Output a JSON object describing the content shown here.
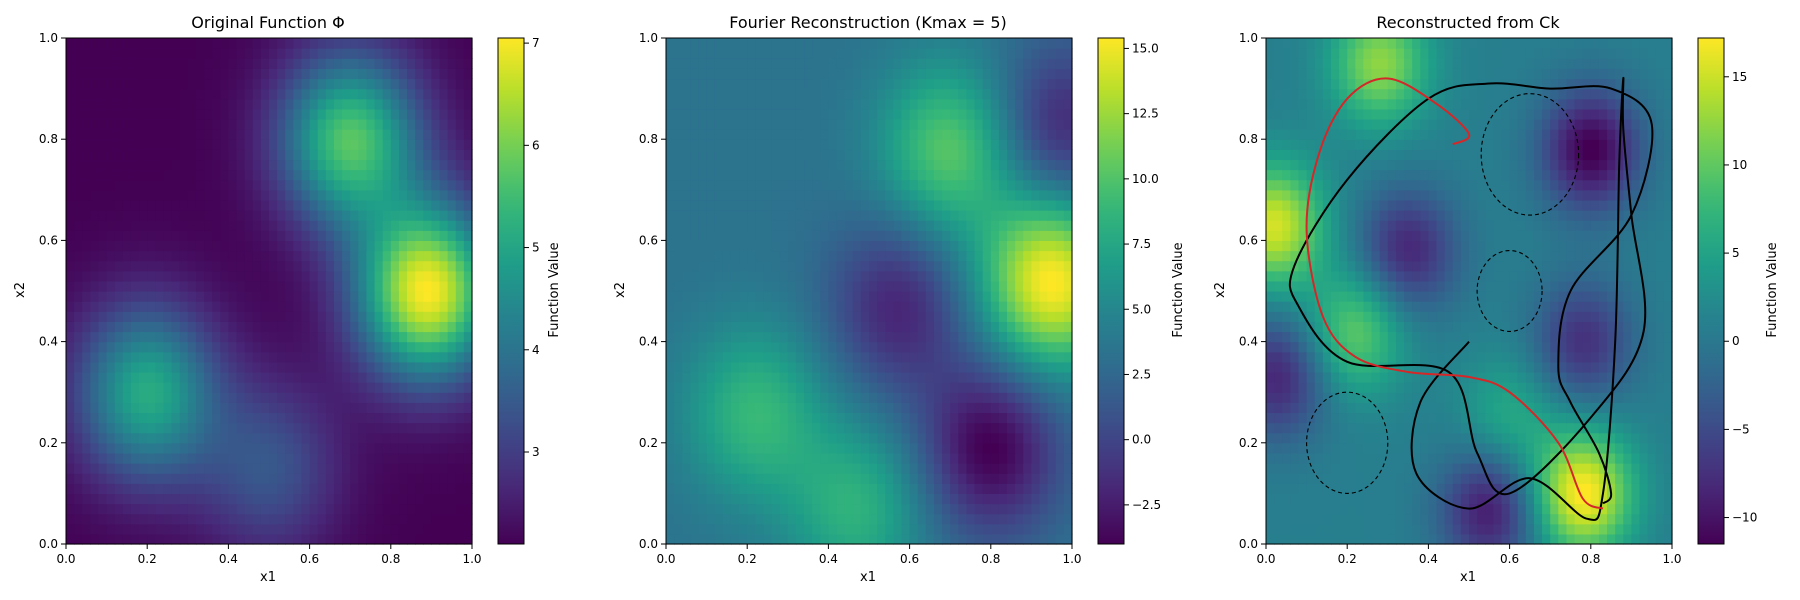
{
  "chart_data": [
    {
      "type": "heatmap",
      "title": "Original Function Φ",
      "xlabel": "x1",
      "ylabel": "x2",
      "xlim": [
        0,
        1
      ],
      "ylim": [
        0,
        1
      ],
      "xticks": [
        "0.0",
        "0.2",
        "0.4",
        "0.6",
        "0.8",
        "1.0"
      ],
      "yticks": [
        "0.0",
        "0.2",
        "0.4",
        "0.6",
        "0.8",
        "1.0"
      ],
      "colormap": "viridis",
      "colorbar": {
        "label": "Function Value",
        "range": [
          2.1,
          7.05
        ],
        "ticks": [
          "3",
          "4",
          "5",
          "6",
          "7"
        ]
      },
      "peaks": [
        {
          "x": 0.2,
          "y": 0.3,
          "value": 5.1
        },
        {
          "x": 0.7,
          "y": 0.8,
          "value": 5.7
        },
        {
          "x": 0.89,
          "y": 0.5,
          "value": 7.0
        },
        {
          "x": 0.5,
          "y": 0.15,
          "value": 3.4
        }
      ]
    },
    {
      "type": "heatmap",
      "title": "Fourier Reconstruction (Kmax = 5)",
      "xlabel": "x1",
      "ylabel": "x2",
      "xlim": [
        0,
        1
      ],
      "ylim": [
        0,
        1
      ],
      "xticks": [
        "0.0",
        "0.2",
        "0.4",
        "0.6",
        "0.8",
        "1.0"
      ],
      "yticks": [
        "0.0",
        "0.2",
        "0.4",
        "0.6",
        "0.8",
        "1.0"
      ],
      "colormap": "viridis",
      "colorbar": {
        "label": "Function Value",
        "range": [
          -4.0,
          15.4
        ],
        "ticks": [
          "−2.5",
          "0.0",
          "2.5",
          "5.0",
          "7.5",
          "10.0",
          "12.5",
          "15.0"
        ]
      },
      "peaks": [
        {
          "x": 0.95,
          "y": 0.52,
          "value": 15.0
        },
        {
          "x": 0.7,
          "y": 0.78,
          "value": 10.0
        },
        {
          "x": 0.22,
          "y": 0.26,
          "value": 8.5
        },
        {
          "x": 0.47,
          "y": 0.07,
          "value": 8.0
        },
        {
          "x": 0.8,
          "y": 0.19,
          "value": -4.0
        },
        {
          "x": 0.57,
          "y": 0.47,
          "value": -2.0
        },
        {
          "x": 0.97,
          "y": 0.82,
          "value": -2.0
        }
      ]
    },
    {
      "type": "heatmap",
      "title": "Reconstructed from Ck",
      "xlabel": "x1",
      "ylabel": "x2",
      "xlim": [
        0,
        1
      ],
      "ylim": [
        0,
        1
      ],
      "xticks": [
        "0.0",
        "0.2",
        "0.4",
        "0.6",
        "0.8",
        "1.0"
      ],
      "yticks": [
        "0.0",
        "0.2",
        "0.4",
        "0.6",
        "0.8",
        "1.0"
      ],
      "colormap": "viridis",
      "colorbar": {
        "label": "Function Value",
        "range": [
          -11.5,
          17.2
        ],
        "ticks": [
          "−10",
          "−5",
          "0",
          "5",
          "10",
          "15"
        ]
      },
      "peaks": [
        {
          "x": 0.78,
          "y": 0.1,
          "value": 17.0
        },
        {
          "x": 0.02,
          "y": 0.63,
          "value": 15.0
        },
        {
          "x": 0.28,
          "y": 0.95,
          "value": 12.0
        },
        {
          "x": 0.22,
          "y": 0.42,
          "value": 10.0
        },
        {
          "x": 0.6,
          "y": 0.25,
          "value": 6.0
        },
        {
          "x": 0.8,
          "y": 0.78,
          "value": -11.0
        },
        {
          "x": 0.35,
          "y": 0.58,
          "value": -8.0
        },
        {
          "x": 0.55,
          "y": 0.07,
          "value": -9.0
        },
        {
          "x": 0.03,
          "y": 0.33,
          "value": -8.0
        },
        {
          "x": 0.78,
          "y": 0.4,
          "value": -7.0
        }
      ],
      "obstacles": [
        {
          "cx": 0.2,
          "cy": 0.2,
          "rx": 0.1,
          "ry": 0.1
        },
        {
          "cx": 0.6,
          "cy": 0.5,
          "rx": 0.08,
          "ry": 0.08
        },
        {
          "cx": 0.65,
          "cy": 0.77,
          "rx": 0.12,
          "ry": 0.12
        }
      ],
      "trajectories": [
        {
          "color": "#000000",
          "points": [
            [
              0.5,
              0.4
            ],
            [
              0.38,
              0.28
            ],
            [
              0.37,
              0.14
            ],
            [
              0.5,
              0.07
            ],
            [
              0.65,
              0.13
            ],
            [
              0.79,
              0.05
            ],
            [
              0.83,
              0.1
            ],
            [
              0.86,
              0.4
            ],
            [
              0.87,
              0.75
            ],
            [
              0.88,
              0.92
            ],
            [
              0.88,
              0.82
            ],
            [
              0.9,
              0.65
            ],
            [
              0.93,
              0.42
            ],
            [
              0.8,
              0.25
            ],
            [
              0.6,
              0.1
            ],
            [
              0.52,
              0.18
            ],
            [
              0.45,
              0.34
            ],
            [
              0.2,
              0.36
            ],
            [
              0.08,
              0.47
            ],
            [
              0.07,
              0.55
            ],
            [
              0.2,
              0.72
            ],
            [
              0.4,
              0.88
            ],
            [
              0.55,
              0.91
            ],
            [
              0.7,
              0.9
            ],
            [
              0.85,
              0.9
            ],
            [
              0.95,
              0.83
            ],
            [
              0.9,
              0.65
            ],
            [
              0.75,
              0.5
            ],
            [
              0.72,
              0.35
            ],
            [
              0.75,
              0.28
            ],
            [
              0.82,
              0.18
            ],
            [
              0.85,
              0.1
            ],
            [
              0.83,
              0.08
            ]
          ]
        },
        {
          "color": "#d62728",
          "points": [
            [
              0.83,
              0.07
            ],
            [
              0.78,
              0.09
            ],
            [
              0.72,
              0.2
            ],
            [
              0.6,
              0.3
            ],
            [
              0.5,
              0.33
            ],
            [
              0.35,
              0.34
            ],
            [
              0.22,
              0.37
            ],
            [
              0.14,
              0.45
            ],
            [
              0.1,
              0.62
            ],
            [
              0.13,
              0.77
            ],
            [
              0.2,
              0.88
            ],
            [
              0.3,
              0.92
            ],
            [
              0.42,
              0.87
            ],
            [
              0.5,
              0.81
            ],
            [
              0.46,
              0.79
            ]
          ]
        }
      ]
    }
  ]
}
